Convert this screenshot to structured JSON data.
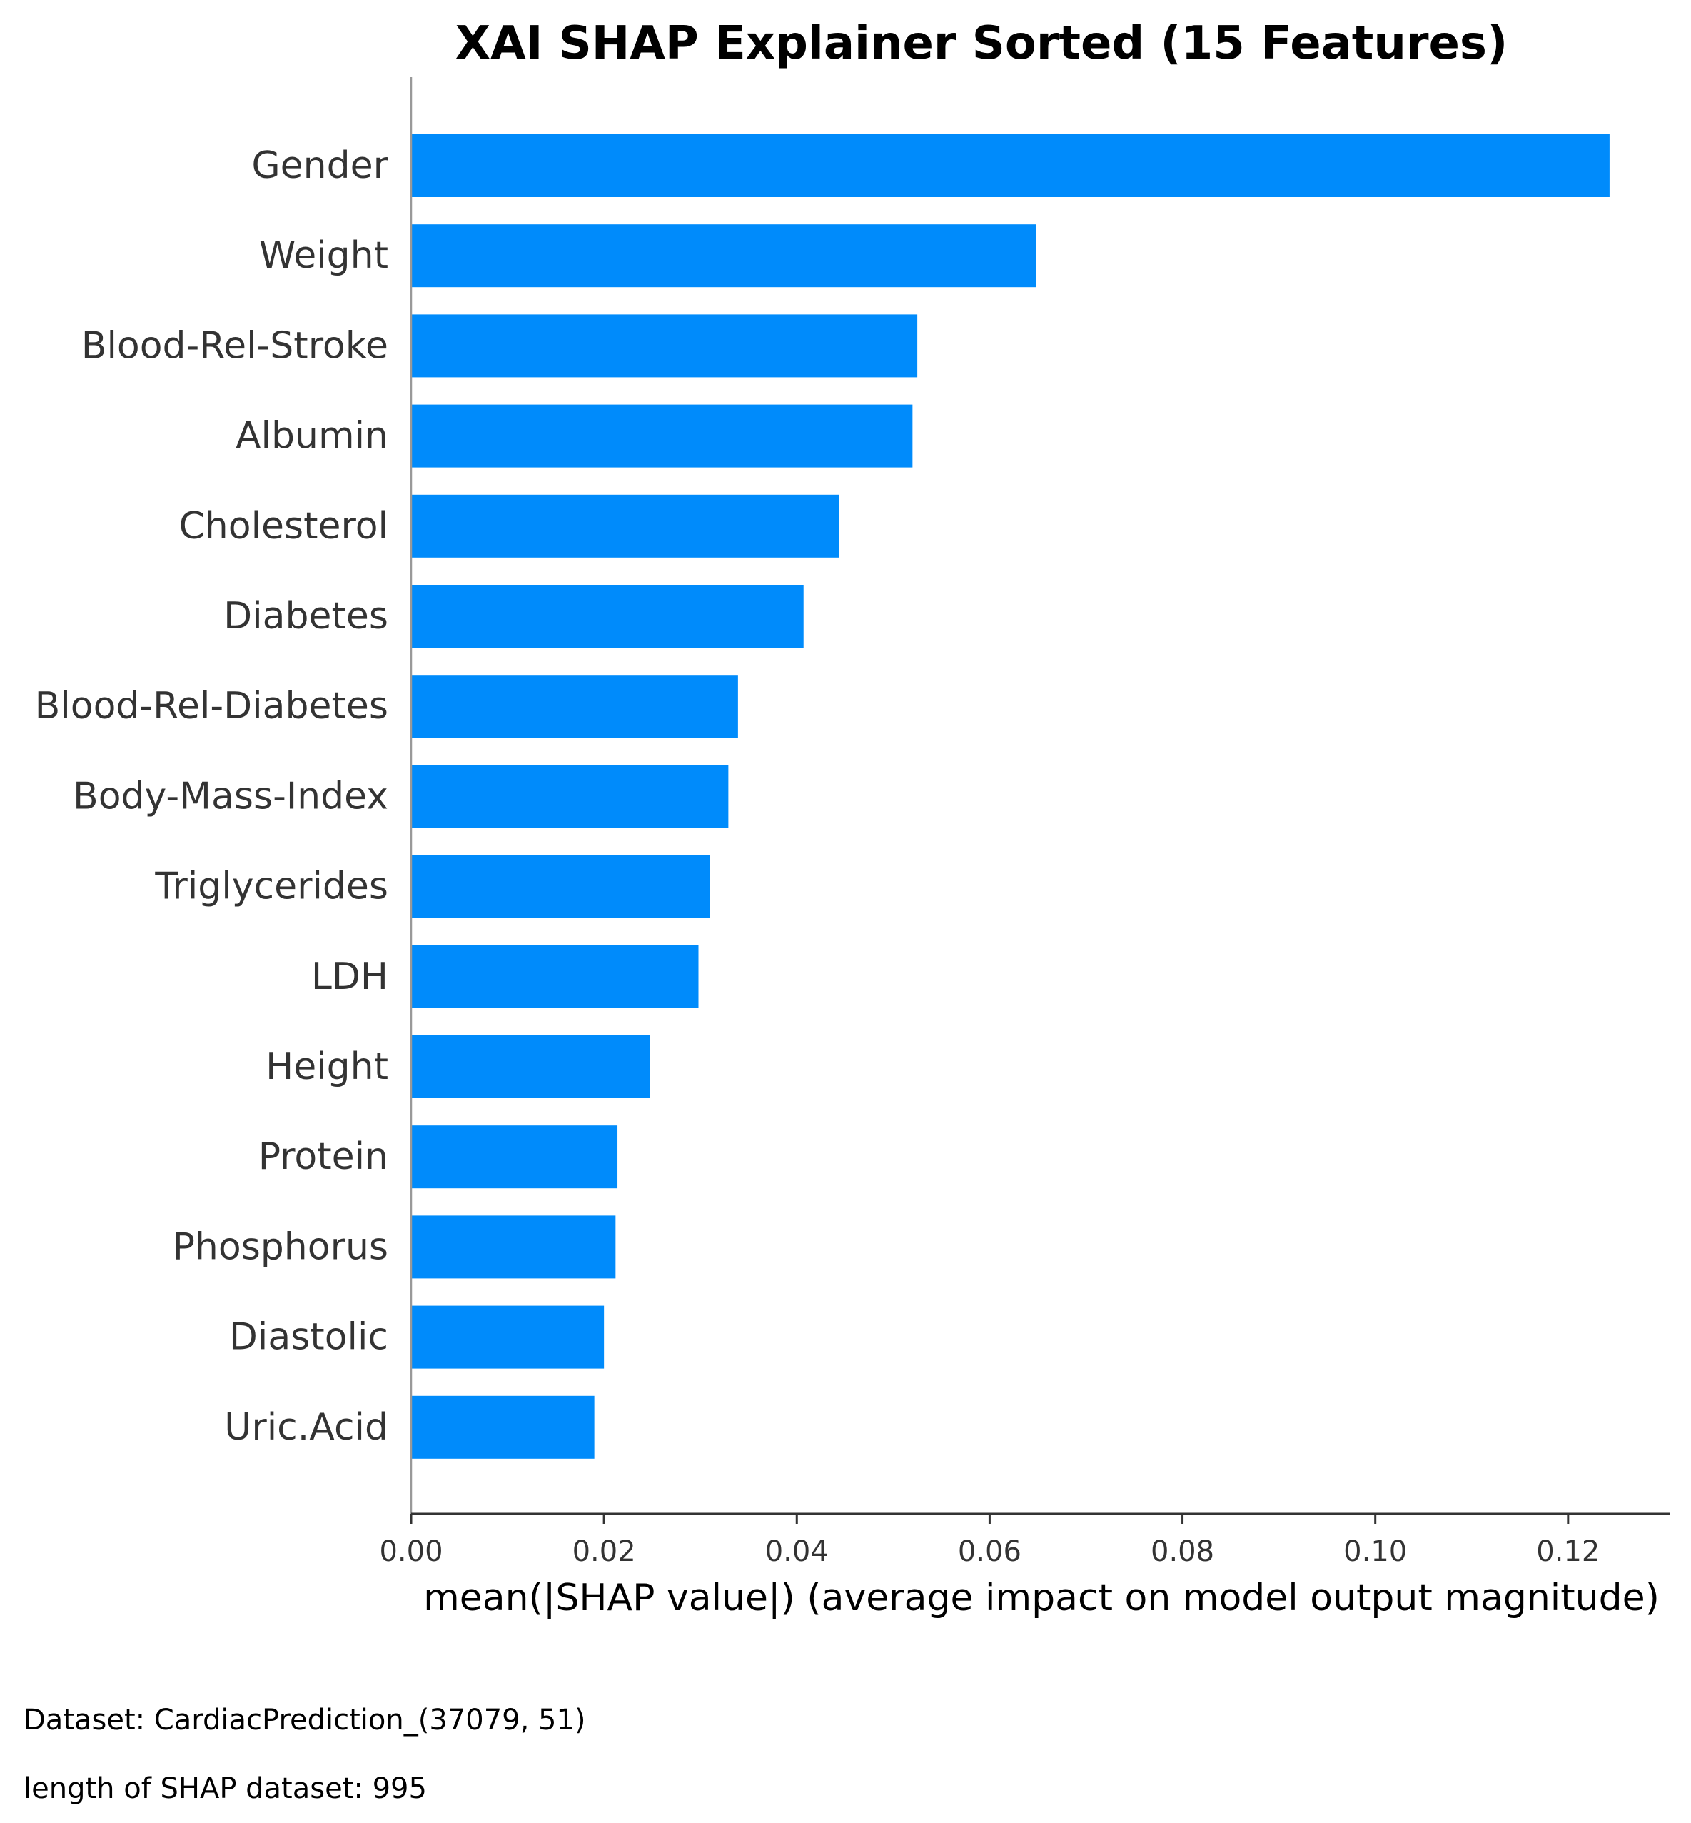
{
  "chart_data": {
    "type": "bar",
    "orientation": "horizontal",
    "title": "XAI SHAP Explainer Sorted  (15 Features)",
    "xlabel": "mean(|SHAP value|) (average impact on model output magnitude)",
    "ylabel": "",
    "categories": [
      "Gender",
      "Weight",
      "Blood-Rel-Stroke",
      "Albumin",
      "Cholesterol",
      "Diabetes",
      "Blood-Rel-Diabetes",
      "Body-Mass-Index",
      "Triglycerides",
      "LDH",
      "Height",
      "Protein",
      "Phosphorus",
      "Diastolic",
      "Uric.Acid"
    ],
    "values": [
      0.1243,
      0.0648,
      0.0525,
      0.052,
      0.0444,
      0.0407,
      0.0339,
      0.0329,
      0.031,
      0.0298,
      0.0248,
      0.0214,
      0.0212,
      0.02,
      0.019
    ],
    "xlim": [
      0,
      0.1306
    ],
    "xticks": [
      0.0,
      0.02,
      0.04,
      0.06,
      0.08,
      0.1,
      0.12
    ],
    "xtick_labels": [
      "0.00",
      "0.02",
      "0.04",
      "0.06",
      "0.08",
      "0.10",
      "0.12"
    ],
    "grid": false,
    "legend": "none",
    "bar_color": "#008bfb"
  },
  "footnotes": {
    "dataset": "Dataset:  CardiacPrediction_(37079, 51)",
    "length": "length of SHAP dataset: 995"
  },
  "colors": {
    "bar": "#008bfb",
    "axis": "#333333",
    "left_spine": "#999999"
  }
}
